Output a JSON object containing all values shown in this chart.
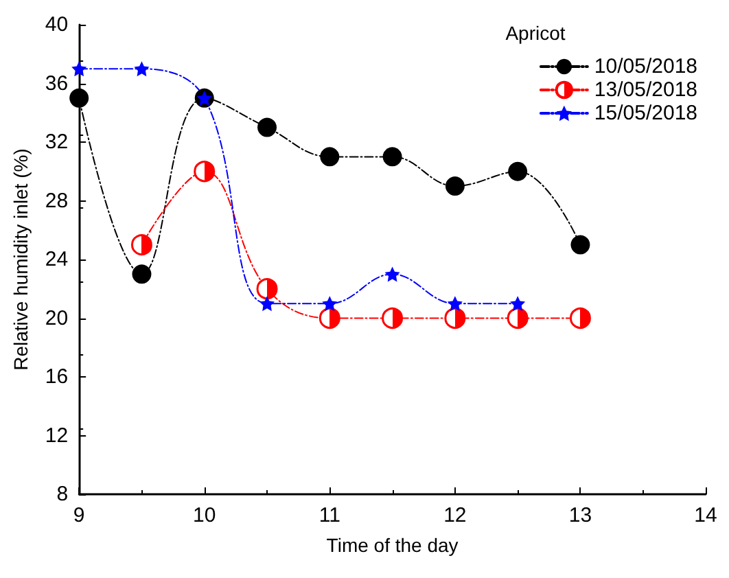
{
  "chart_data": {
    "type": "line",
    "title": "Apricot",
    "xlabel": "Time of the day",
    "ylabel": "Relative humidity inlet (%)",
    "xlim": [
      9,
      14
    ],
    "xticks": [
      9,
      10,
      11,
      12,
      13,
      14
    ],
    "ylim": [
      8,
      40
    ],
    "yticks": [
      8,
      12,
      16,
      20,
      24,
      28,
      32,
      36,
      40
    ],
    "grid": false,
    "legend": "top right",
    "line_style": "dashed",
    "series": [
      {
        "name": "10/05/2018",
        "color": "#000000",
        "marker": "circle",
        "x": [
          9,
          9.5,
          10,
          10.5,
          11,
          11.5,
          12,
          12.5,
          13
        ],
        "values": [
          35,
          23,
          35,
          33,
          31,
          31,
          29,
          30,
          25
        ]
      },
      {
        "name": "13/05/2018",
        "color": "#ff0000",
        "marker": "circle",
        "x": [
          9.5,
          10,
          10.5,
          11,
          11.5,
          12,
          12.5,
          13
        ],
        "values": [
          25,
          30,
          22,
          20,
          20,
          20,
          20,
          20
        ]
      },
      {
        "name": "15/05/2018",
        "color": "#0000ff",
        "marker": "star",
        "x": [
          9,
          9.5,
          10,
          10.5,
          11,
          11.5,
          12,
          12.5
        ],
        "values": [
          37,
          37,
          35,
          21,
          21,
          23,
          21,
          21
        ]
      }
    ]
  }
}
